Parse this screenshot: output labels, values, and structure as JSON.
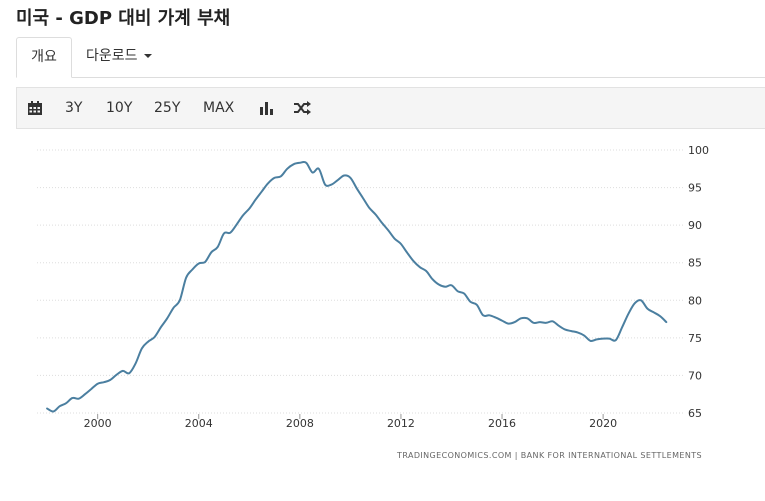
{
  "header": {
    "title": "미국 - GDP 대비 가계 부채"
  },
  "tabs": [
    {
      "label": "개요"
    },
    {
      "label": "다운로드"
    }
  ],
  "toolbar": {
    "calendar_icon": "calendar-icon",
    "ranges": [
      "3Y",
      "10Y",
      "25Y",
      "MAX"
    ],
    "chart_type_icon": "bar-chart-icon",
    "compare_icon": "shuffle-icon"
  },
  "chart_data": {
    "type": "line",
    "title": "",
    "xlabel": "",
    "ylabel": "",
    "xlim": [
      1997.6,
      2023.2
    ],
    "ylim": [
      65,
      100
    ],
    "y_ticks": [
      65,
      70,
      75,
      80,
      85,
      90,
      95,
      100
    ],
    "x_ticks": [
      2000,
      2004,
      2008,
      2012,
      2016,
      2020
    ],
    "grid": true,
    "line_color": "#4b7fa0",
    "source": "TRADINGECONOMICS.COM  |  BANK FOR INTERNATIONAL SETTLEMENTS",
    "series": [
      {
        "x": [
          1998.0,
          1998.25,
          1998.5,
          1998.75,
          1999.0,
          1999.25,
          1999.5,
          1999.75,
          2000.0,
          2000.25,
          2000.5,
          2000.75,
          2001.0,
          2001.25,
          2001.5,
          2001.75,
          2002.0,
          2002.25,
          2002.5,
          2002.75,
          2003.0,
          2003.25,
          2003.5,
          2003.75,
          2004.0,
          2004.25,
          2004.5,
          2004.75,
          2005.0,
          2005.25,
          2005.5,
          2005.75,
          2006.0,
          2006.25,
          2006.5,
          2006.75,
          2007.0,
          2007.25,
          2007.5,
          2007.75,
          2008.0,
          2008.25,
          2008.5,
          2008.75,
          2009.0,
          2009.25,
          2009.5,
          2009.75,
          2010.0,
          2010.25,
          2010.5,
          2010.75,
          2011.0,
          2011.25,
          2011.5,
          2011.75,
          2012.0,
          2012.25,
          2012.5,
          2012.75,
          2013.0,
          2013.25,
          2013.5,
          2013.75,
          2014.0,
          2014.25,
          2014.5,
          2014.75,
          2015.0,
          2015.25,
          2015.5,
          2015.75,
          2016.0,
          2016.25,
          2016.5,
          2016.75,
          2017.0,
          2017.25,
          2017.5,
          2017.75,
          2018.0,
          2018.25,
          2018.5,
          2018.75,
          2019.0,
          2019.25,
          2019.5,
          2019.75,
          2020.0,
          2020.25,
          2020.5,
          2020.75,
          2021.0,
          2021.25,
          2021.5,
          2021.75,
          2022.0,
          2022.25,
          2022.5
        ],
        "values": [
          65.6,
          65.2,
          65.9,
          66.3,
          67.0,
          66.9,
          67.5,
          68.2,
          68.9,
          69.1,
          69.4,
          70.1,
          70.6,
          70.3,
          71.6,
          73.6,
          74.5,
          75.1,
          76.4,
          77.6,
          79.0,
          80.0,
          83.0,
          84.1,
          84.9,
          85.1,
          86.4,
          87.1,
          88.9,
          89.0,
          90.1,
          91.3,
          92.2,
          93.4,
          94.5,
          95.6,
          96.3,
          96.5,
          97.5,
          98.1,
          98.3,
          98.3,
          97.0,
          97.5,
          95.4,
          95.4,
          96.0,
          96.6,
          96.3,
          94.9,
          93.6,
          92.3,
          91.4,
          90.3,
          89.3,
          88.2,
          87.5,
          86.3,
          85.2,
          84.4,
          83.9,
          82.8,
          82.1,
          81.8,
          82.0,
          81.2,
          80.9,
          79.8,
          79.4,
          78.0,
          78.0,
          77.7,
          77.3,
          76.9,
          77.1,
          77.6,
          77.6,
          77.0,
          77.1,
          77.0,
          77.2,
          76.6,
          76.1,
          75.9,
          75.7,
          75.3,
          74.6,
          74.8,
          74.9,
          74.9,
          74.7,
          76.4,
          78.2,
          79.6,
          80.0,
          78.9,
          78.4,
          77.9,
          77.1
        ]
      }
    ]
  }
}
